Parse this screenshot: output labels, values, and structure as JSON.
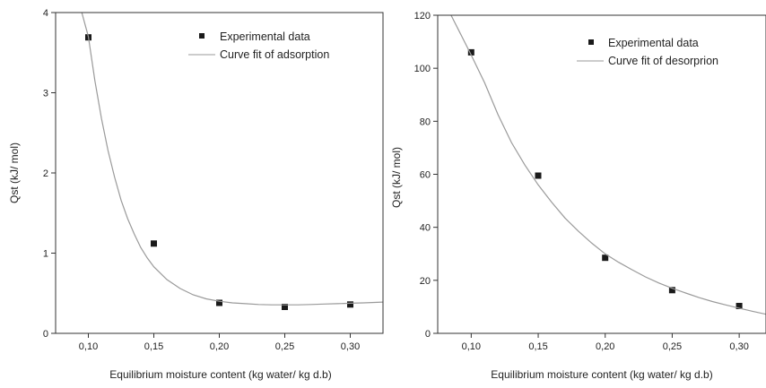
{
  "chart_data": [
    {
      "type": "scatter",
      "xlabel": "Equilibrium moisture content (kg water/ kg d.b)",
      "ylabel": "Qst (kJ/ mol)",
      "xlim": [
        0.075,
        0.325
      ],
      "ylim": [
        0,
        4
      ],
      "xticks": [
        0.1,
        0.15,
        0.2,
        0.25,
        0.3
      ],
      "xtick_labels": [
        "0,10",
        "0,15",
        "0,20",
        "0,25",
        "0,30"
      ],
      "yticks": [
        0,
        1,
        2,
        3,
        4
      ],
      "ytick_labels": [
        "0",
        "1",
        "2",
        "3",
        "4"
      ],
      "legend_position": "top-right",
      "series": [
        {
          "name": "Experimental data",
          "kind": "points",
          "x": [
            0.1,
            0.15,
            0.2,
            0.25,
            0.3
          ],
          "y": [
            3.69,
            1.12,
            0.38,
            0.33,
            0.36
          ],
          "color": "#1a1a1a"
        },
        {
          "name": "Curve fit of adsorption",
          "kind": "line",
          "color": "#9a9a9a",
          "x": [
            0.095,
            0.1,
            0.105,
            0.11,
            0.115,
            0.12,
            0.125,
            0.13,
            0.135,
            0.14,
            0.145,
            0.15,
            0.16,
            0.17,
            0.18,
            0.19,
            0.2,
            0.21,
            0.22,
            0.23,
            0.24,
            0.25,
            0.26,
            0.27,
            0.28,
            0.29,
            0.3,
            0.31,
            0.325
          ],
          "y": [
            4.0,
            3.7,
            3.15,
            2.68,
            2.28,
            1.95,
            1.66,
            1.43,
            1.24,
            1.07,
            0.94,
            0.83,
            0.67,
            0.56,
            0.48,
            0.43,
            0.4,
            0.38,
            0.37,
            0.36,
            0.355,
            0.355,
            0.355,
            0.36,
            0.365,
            0.37,
            0.375,
            0.38,
            0.39
          ]
        }
      ]
    },
    {
      "type": "scatter",
      "xlabel": "Equilibrium moisture content (kg water/ kg d.b)",
      "ylabel": "Qst (kJ/ mol)",
      "xlim": [
        0.075,
        0.32
      ],
      "ylim": [
        0,
        120
      ],
      "xticks": [
        0.1,
        0.15,
        0.2,
        0.25,
        0.3
      ],
      "xtick_labels": [
        "0,10",
        "0,15",
        "0,20",
        "0,25",
        "0,30"
      ],
      "yticks": [
        0,
        20,
        40,
        60,
        80,
        100,
        120
      ],
      "ytick_labels": [
        "0",
        "20",
        "40",
        "60",
        "80",
        "100",
        "120"
      ],
      "legend_position": "top-right",
      "series": [
        {
          "name": "Experimental data",
          "kind": "points",
          "x": [
            0.1,
            0.15,
            0.2,
            0.25,
            0.3
          ],
          "y": [
            106,
            59.5,
            28.5,
            16.3,
            10.3
          ],
          "color": "#1a1a1a"
        },
        {
          "name": "Curve fit of desorprion",
          "kind": "line",
          "color": "#9a9a9a",
          "x": [
            0.085,
            0.09,
            0.095,
            0.1,
            0.11,
            0.12,
            0.13,
            0.14,
            0.15,
            0.16,
            0.17,
            0.18,
            0.19,
            0.2,
            0.21,
            0.22,
            0.23,
            0.24,
            0.25,
            0.26,
            0.27,
            0.28,
            0.29,
            0.3,
            0.31,
            0.32
          ],
          "y": [
            120,
            115,
            110,
            105,
            94.5,
            82.5,
            72,
            63.5,
            56,
            49.5,
            43.5,
            38.5,
            34,
            30,
            26.8,
            24,
            21.3,
            19,
            17,
            15.2,
            13.5,
            12,
            10.7,
            9.5,
            8.3,
            7.2
          ]
        }
      ]
    }
  ]
}
